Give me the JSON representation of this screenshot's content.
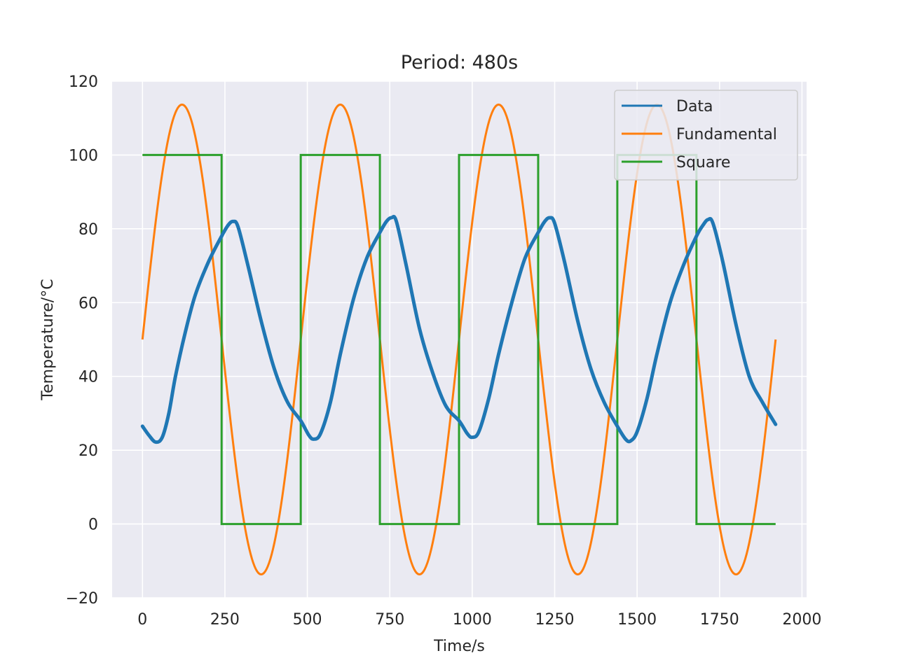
{
  "chart_data": {
    "type": "line",
    "title": "Period: 480s",
    "xlabel": "Time/s",
    "ylabel": "Temperature/°C",
    "xlim": [
      -92,
      2014
    ],
    "ylim": [
      -20,
      120
    ],
    "xticks": [
      0,
      250,
      500,
      750,
      1000,
      1250,
      1500,
      1750,
      2000
    ],
    "yticks": [
      -20,
      0,
      20,
      40,
      60,
      80,
      100,
      120
    ],
    "xtick_labels": [
      "0",
      "250",
      "500",
      "750",
      "1000",
      "1250",
      "1500",
      "1750",
      "2000"
    ],
    "ytick_labels": [
      "−20",
      "0",
      "20",
      "40",
      "60",
      "80",
      "100",
      "120"
    ],
    "grid": true,
    "legend": "top-right",
    "background": "#eaeaf2",
    "series": [
      {
        "name": "Data",
        "color": "#1f77b4",
        "x": [
          0,
          20,
          40,
          60,
          80,
          100,
          130,
          160,
          200,
          240,
          260,
          275,
          290,
          320,
          360,
          400,
          440,
          480,
          505,
          520,
          540,
          570,
          600,
          640,
          680,
          720,
          740,
          755,
          770,
          800,
          840,
          880,
          920,
          960,
          985,
          1000,
          1020,
          1050,
          1080,
          1120,
          1160,
          1200,
          1220,
          1235,
          1250,
          1280,
          1320,
          1360,
          1400,
          1440,
          1465,
          1480,
          1500,
          1530,
          1560,
          1600,
          1640,
          1680,
          1700,
          1715,
          1730,
          1760,
          1800,
          1840,
          1880,
          1920
        ],
        "y": [
          26.5,
          24,
          22.2,
          23.5,
          30,
          40,
          52,
          62,
          71,
          78,
          81,
          82,
          80.5,
          70,
          55,
          42,
          33,
          28,
          24,
          23,
          24.5,
          33,
          46,
          61,
          72,
          79,
          82,
          83,
          82,
          70,
          53,
          41,
          32,
          28,
          24.5,
          23.5,
          25,
          34,
          46,
          60,
          72,
          79,
          82,
          83,
          81.5,
          71,
          55,
          42,
          33,
          26.5,
          23,
          22.5,
          25,
          34,
          46,
          60,
          70,
          78,
          81,
          82.5,
          81.5,
          71,
          54,
          40,
          33,
          27
        ]
      },
      {
        "name": "Fundamental",
        "color": "#ff7f0e",
        "amplitude": 63.66,
        "offset": 50,
        "period": 480,
        "x_range": [
          0,
          1920
        ],
        "peak": 113.7,
        "trough": -13.7
      },
      {
        "name": "Square",
        "color": "#2ca02c",
        "x": [
          0,
          240,
          240,
          480,
          480,
          720,
          720,
          960,
          960,
          1200,
          1200,
          1440,
          1440,
          1680,
          1680,
          1920
        ],
        "y": [
          100,
          100,
          0,
          0,
          100,
          100,
          0,
          0,
          100,
          100,
          0,
          0,
          100,
          100,
          0,
          0
        ]
      }
    ]
  }
}
